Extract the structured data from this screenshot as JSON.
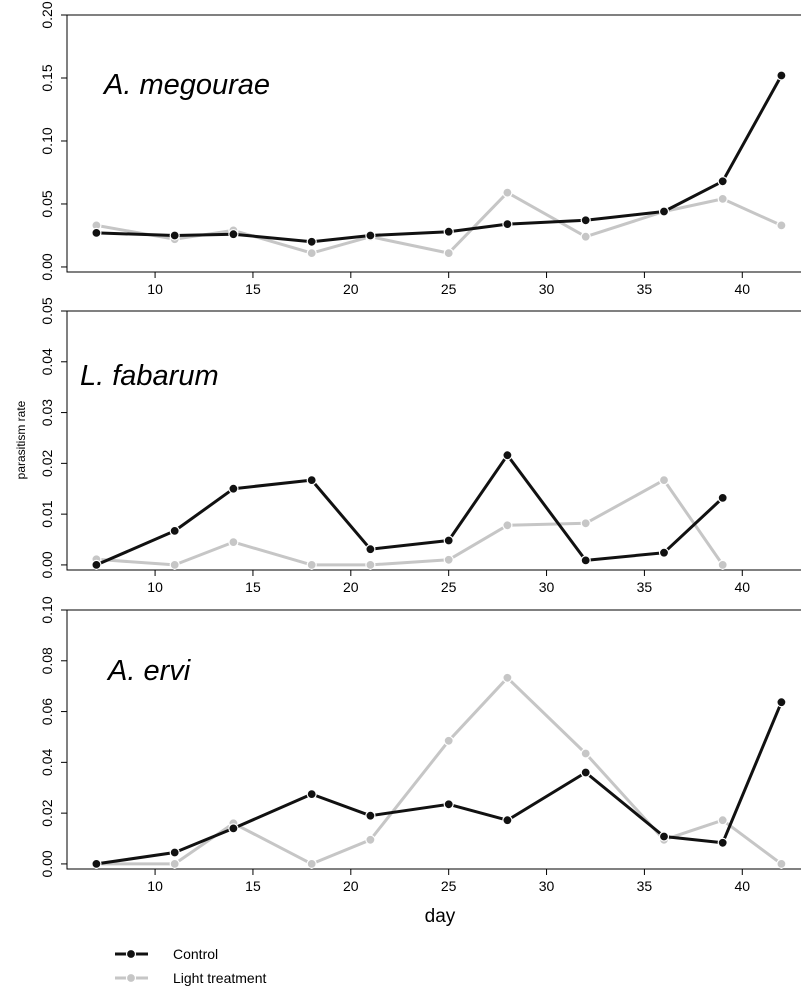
{
  "colors": {
    "control": "#111111",
    "light": "#c6c6c6"
  },
  "legend": {
    "control_label": "Control",
    "light_label": "Light treatment",
    "placement": "bottom-left"
  },
  "chart_data": [
    {
      "type": "line",
      "title": "A. megourae",
      "xlabel": "",
      "ylabel": "",
      "xlim": [
        5.5,
        43
      ],
      "ylim": [
        -0.004,
        0.2
      ],
      "xticks": [
        10,
        15,
        20,
        25,
        30,
        35,
        40
      ],
      "yticks": [
        0.0,
        0.05,
        0.1,
        0.15,
        0.2
      ],
      "ytick_labels": [
        "0.00",
        "0.05",
        "0.10",
        "0.15",
        "0.20"
      ],
      "series": [
        {
          "name": "Control",
          "x": [
            7,
            11,
            14,
            18,
            21,
            25,
            28,
            32,
            36,
            39,
            42
          ],
          "y": [
            0.027,
            0.025,
            0.026,
            0.02,
            0.025,
            0.028,
            0.034,
            0.037,
            0.044,
            0.068,
            0.152
          ]
        },
        {
          "name": "Light treatment",
          "x": [
            7,
            11,
            14,
            18,
            21,
            25,
            28,
            32,
            36,
            39,
            42
          ],
          "y": [
            0.033,
            0.022,
            0.029,
            0.011,
            0.024,
            0.011,
            0.059,
            0.024,
            0.044,
            0.054,
            0.033
          ]
        }
      ]
    },
    {
      "type": "line",
      "title": "L. fabarum",
      "xlabel": "",
      "ylabel": "parasitism rate",
      "xlim": [
        5.5,
        43
      ],
      "ylim": [
        -0.001,
        0.05
      ],
      "xticks": [
        10,
        15,
        20,
        25,
        30,
        35,
        40
      ],
      "yticks": [
        0.0,
        0.01,
        0.02,
        0.03,
        0.04,
        0.05
      ],
      "ytick_labels": [
        "0.00",
        "0.01",
        "0.02",
        "0.03",
        "0.04",
        "0.05"
      ],
      "series": [
        {
          "name": "Control",
          "x": [
            7,
            11,
            14,
            18,
            21,
            25,
            28,
            32,
            36,
            39
          ],
          "y": [
            0.0,
            0.0067,
            0.015,
            0.0167,
            0.0031,
            0.0048,
            0.0216,
            0.0009,
            0.0024,
            0.0132
          ]
        },
        {
          "name": "Light treatment",
          "x": [
            7,
            11,
            14,
            18,
            21,
            25,
            28,
            32,
            36,
            39
          ],
          "y": [
            0.0011,
            0.0,
            0.0045,
            0.0,
            0.0,
            0.001,
            0.0078,
            0.0082,
            0.0167,
            0.0
          ]
        }
      ]
    },
    {
      "type": "line",
      "title": "A. ervi",
      "xlabel": "day",
      "ylabel": "",
      "xlim": [
        5.5,
        43
      ],
      "ylim": [
        -0.002,
        0.1
      ],
      "xticks": [
        10,
        15,
        20,
        25,
        30,
        35,
        40
      ],
      "yticks": [
        0.0,
        0.02,
        0.04,
        0.06,
        0.08,
        0.1
      ],
      "ytick_labels": [
        "0.00",
        "0.02",
        "0.04",
        "0.06",
        "0.08",
        "0.10"
      ],
      "series": [
        {
          "name": "Control",
          "x": [
            7,
            11,
            14,
            18,
            21,
            25,
            28,
            32,
            36,
            39,
            42
          ],
          "y": [
            0.0,
            0.0045,
            0.014,
            0.0275,
            0.019,
            0.0235,
            0.0172,
            0.036,
            0.0108,
            0.0083,
            0.0637
          ]
        },
        {
          "name": "Light treatment",
          "x": [
            7,
            11,
            14,
            18,
            21,
            25,
            28,
            32,
            36,
            39,
            42
          ],
          "y": [
            0.0,
            0.0,
            0.016,
            0.0,
            0.0095,
            0.0485,
            0.0733,
            0.0435,
            0.0095,
            0.0172,
            0.0
          ]
        }
      ]
    }
  ]
}
